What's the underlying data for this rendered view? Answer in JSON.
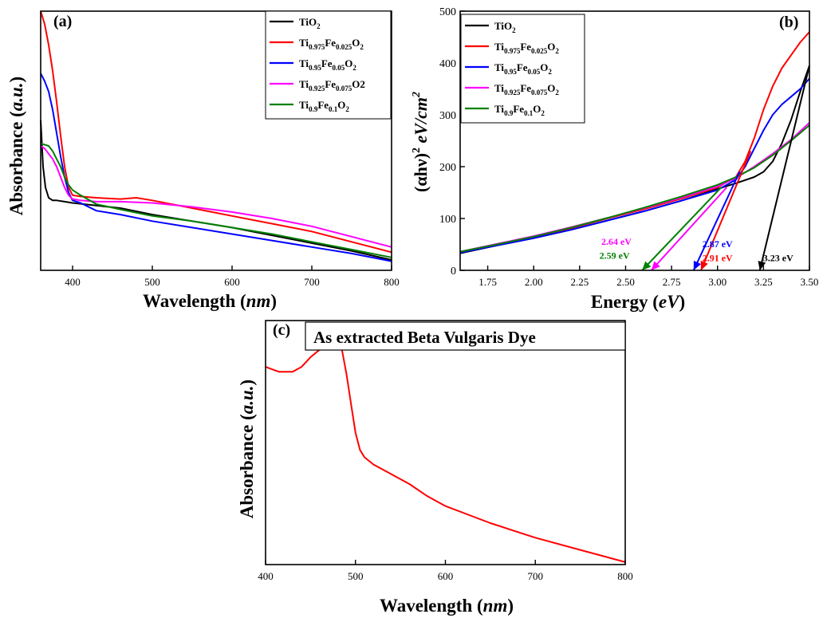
{
  "chart_data": [
    {
      "panel_label": "(a)",
      "type": "line",
      "xlabel": "Wavelength",
      "xlabel_unit": "nm",
      "ylabel": "Absorbance",
      "ylabel_unit": "a.u.",
      "xlim": [
        360,
        800
      ],
      "ylim": [
        0,
        1
      ],
      "xticks": [
        400,
        500,
        600,
        700,
        800
      ],
      "y_ticks_shown": false,
      "legend": {
        "placement": "top-right"
      },
      "series": [
        {
          "name": "TiO2",
          "label": {
            "base": "TiO",
            "subs": [
              "2"
            ],
            "parts": [
              "TiO",
              "2"
            ]
          },
          "color": "#000000",
          "x": [
            360,
            363,
            366,
            370,
            375,
            380,
            390,
            400,
            430,
            460,
            500,
            550,
            600,
            650,
            700,
            750,
            800
          ],
          "y": [
            0.58,
            0.4,
            0.32,
            0.28,
            0.27,
            0.27,
            0.265,
            0.26,
            0.25,
            0.24,
            0.215,
            0.19,
            0.165,
            0.135,
            0.105,
            0.075,
            0.04
          ]
        },
        {
          "name": "Ti0.975Fe0.025O2",
          "label": {
            "parts": [
              "Ti",
              "0.975",
              "Fe",
              "0.025",
              "O",
              "2"
            ]
          },
          "color": "#ff0000",
          "x": [
            360,
            365,
            370,
            375,
            380,
            385,
            390,
            395,
            400,
            410,
            430,
            460,
            480,
            500,
            550,
            600,
            650,
            700,
            750,
            800
          ],
          "y": [
            1.0,
            0.95,
            0.87,
            0.77,
            0.65,
            0.52,
            0.4,
            0.32,
            0.29,
            0.285,
            0.28,
            0.275,
            0.28,
            0.27,
            0.24,
            0.21,
            0.18,
            0.15,
            0.11,
            0.07
          ]
        },
        {
          "name": "Ti0.95Fe0.05O2",
          "label": {
            "parts": [
              "Ti",
              "0.95",
              "Fe",
              "0.05",
              "O",
              "2"
            ]
          },
          "color": "#0000ff",
          "x": [
            360,
            365,
            370,
            375,
            380,
            385,
            390,
            395,
            400,
            410,
            430,
            460,
            500,
            550,
            600,
            650,
            700,
            750,
            800
          ],
          "y": [
            0.76,
            0.73,
            0.69,
            0.62,
            0.53,
            0.44,
            0.36,
            0.3,
            0.27,
            0.26,
            0.23,
            0.215,
            0.19,
            0.165,
            0.14,
            0.115,
            0.09,
            0.065,
            0.035
          ]
        },
        {
          "name": "Ti0.925Fe0.075O2",
          "label": {
            "parts": [
              "Ti",
              "0.925",
              "Fe",
              "0.075",
              "O2"
            ]
          },
          "color": "#ff00ff",
          "x": [
            360,
            365,
            370,
            375,
            380,
            385,
            390,
            395,
            400,
            410,
            430,
            460,
            500,
            550,
            600,
            650,
            700,
            750,
            800
          ],
          "y": [
            0.48,
            0.47,
            0.45,
            0.43,
            0.4,
            0.36,
            0.32,
            0.29,
            0.275,
            0.27,
            0.265,
            0.265,
            0.26,
            0.245,
            0.225,
            0.2,
            0.17,
            0.13,
            0.09
          ]
        },
        {
          "name": "Ti0.9Fe0.1O2",
          "label": {
            "parts": [
              "Ti",
              "0.9",
              "Fe",
              "0.1",
              "O",
              "2"
            ]
          },
          "color": "#008000",
          "x": [
            360,
            365,
            370,
            375,
            380,
            385,
            390,
            395,
            400,
            410,
            430,
            460,
            500,
            550,
            600,
            650,
            700,
            750,
            800
          ],
          "y": [
            0.49,
            0.485,
            0.48,
            0.46,
            0.43,
            0.4,
            0.36,
            0.33,
            0.31,
            0.29,
            0.255,
            0.235,
            0.21,
            0.19,
            0.165,
            0.14,
            0.11,
            0.08,
            0.05
          ]
        }
      ]
    },
    {
      "panel_label": "(b)",
      "type": "line",
      "xlabel": "Energy",
      "xlabel_unit": "eV",
      "ylabel_parts": [
        "(αhν)",
        "2",
        " eV/cm",
        "2"
      ],
      "xlim": [
        1.6,
        3.5
      ],
      "ylim": [
        0,
        500
      ],
      "xticks": [
        "1.75",
        "2.00",
        "2.25",
        "2.50",
        "2.75",
        "3.00",
        "3.25",
        "3.50"
      ],
      "yticks": [
        0,
        100,
        200,
        300,
        400,
        500
      ],
      "legend": {
        "placement": "top-left"
      },
      "series": [
        {
          "name": "TiO2",
          "label": {
            "base": "TiO",
            "subs": [
              "2"
            ],
            "parts": [
              "TiO",
              "2"
            ]
          },
          "color": "#000000",
          "x": [
            1.6,
            1.8,
            2.0,
            2.2,
            2.4,
            2.6,
            2.8,
            3.0,
            3.1,
            3.2,
            3.25,
            3.3,
            3.35,
            3.4,
            3.45,
            3.5
          ],
          "y": [
            33,
            48,
            62,
            78,
            96,
            114,
            134,
            157,
            168,
            180,
            190,
            210,
            245,
            290,
            345,
            395
          ]
        },
        {
          "name": "Ti0.975Fe0.025O2",
          "label": {
            "parts": [
              "Ti",
              "0.975",
              "Fe",
              "0.025",
              "O",
              "2"
            ]
          },
          "color": "#ff0000",
          "x": [
            1.6,
            1.8,
            2.0,
            2.2,
            2.4,
            2.6,
            2.8,
            3.0,
            3.1,
            3.15,
            3.2,
            3.25,
            3.3,
            3.35,
            3.4,
            3.45,
            3.5
          ],
          "y": [
            35,
            50,
            64,
            81,
            100,
            118,
            138,
            160,
            180,
            210,
            255,
            310,
            355,
            390,
            415,
            440,
            460
          ]
        },
        {
          "name": "Ti0.95Fe0.05O2",
          "label": {
            "parts": [
              "Ti",
              "0.95",
              "Fe",
              "0.05",
              "O",
              "2"
            ]
          },
          "color": "#0000ff",
          "x": [
            1.6,
            1.8,
            2.0,
            2.2,
            2.4,
            2.6,
            2.8,
            3.0,
            3.1,
            3.15,
            3.2,
            3.25,
            3.3,
            3.35,
            3.4,
            3.45,
            3.5
          ],
          "y": [
            34,
            48,
            62,
            78,
            96,
            114,
            134,
            155,
            175,
            200,
            235,
            270,
            300,
            320,
            335,
            350,
            370
          ]
        },
        {
          "name": "Ti0.925Fe0.075O2",
          "label": {
            "parts": [
              "Ti",
              "0.925",
              "Fe",
              "0.075",
              "O",
              "2"
            ]
          },
          "color": "#ff00ff",
          "x": [
            1.6,
            1.8,
            2.0,
            2.2,
            2.4,
            2.6,
            2.8,
            3.0,
            3.1,
            3.2,
            3.3,
            3.4,
            3.5
          ],
          "y": [
            36,
            51,
            66,
            83,
            101,
            120,
            140,
            162,
            178,
            200,
            225,
            252,
            285
          ]
        },
        {
          "name": "Ti0.9Fe0.1O2",
          "label": {
            "parts": [
              "Ti",
              "0.9",
              "Fe",
              "0.1",
              "O",
              "2"
            ]
          },
          "color": "#008000",
          "x": [
            1.6,
            1.8,
            2.0,
            2.2,
            2.4,
            2.6,
            2.8,
            3.0,
            3.1,
            3.2,
            3.3,
            3.4,
            3.5
          ],
          "y": [
            36,
            50,
            65,
            82,
            101,
            121,
            142,
            165,
            180,
            198,
            222,
            250,
            280
          ]
        }
      ],
      "tangent_lines": [
        {
          "color": "#000000",
          "from": [
            3.5,
            395
          ],
          "to": [
            3.23,
            0
          ]
        },
        {
          "color": "#ff0000",
          "from": [
            3.18,
            230
          ],
          "to": [
            2.91,
            0
          ]
        },
        {
          "color": "#0000ff",
          "from": [
            3.12,
            190
          ],
          "to": [
            2.87,
            0
          ]
        },
        {
          "color": "#ff00ff",
          "from": [
            3.05,
            160
          ],
          "to": [
            2.64,
            0
          ]
        },
        {
          "color": "#008000",
          "from": [
            3.02,
            160
          ],
          "to": [
            2.59,
            0
          ]
        }
      ],
      "annotations": [
        {
          "text": "3.23 eV",
          "color": "#000000",
          "x": 3.33,
          "y": 18
        },
        {
          "text": "2.91 eV",
          "color": "#ff0000",
          "x": 3.0,
          "y": 18
        },
        {
          "text": "2.87 eV",
          "color": "#0000ff",
          "x": 3.0,
          "y": 45
        },
        {
          "text": "2.64 eV",
          "color": "#ff00ff",
          "x": 2.45,
          "y": 49
        },
        {
          "text": "2.59 eV",
          "color": "#008000",
          "x": 2.44,
          "y": 22
        }
      ]
    },
    {
      "panel_label": "(c)",
      "type": "line",
      "title": "As extracted Beta Vulgaris Dye",
      "xlabel": "Wavelength",
      "xlabel_unit": "nm",
      "ylabel": "Absorbance",
      "ylabel_unit": "a.u.",
      "xlim": [
        400,
        800
      ],
      "ylim": [
        0,
        1
      ],
      "xticks": [
        400,
        500,
        600,
        700,
        800
      ],
      "y_ticks_shown": false,
      "series": [
        {
          "color": "#ff0000",
          "x": [
            400,
            415,
            430,
            440,
            450,
            460,
            470,
            477,
            485,
            490,
            495,
            500,
            505,
            510,
            520,
            540,
            560,
            580,
            600,
            650,
            700,
            750,
            800
          ],
          "y": [
            0.81,
            0.79,
            0.79,
            0.81,
            0.85,
            0.88,
            0.91,
            0.93,
            0.88,
            0.78,
            0.66,
            0.54,
            0.47,
            0.44,
            0.41,
            0.37,
            0.33,
            0.28,
            0.24,
            0.17,
            0.11,
            0.06,
            0.01
          ]
        }
      ]
    }
  ]
}
